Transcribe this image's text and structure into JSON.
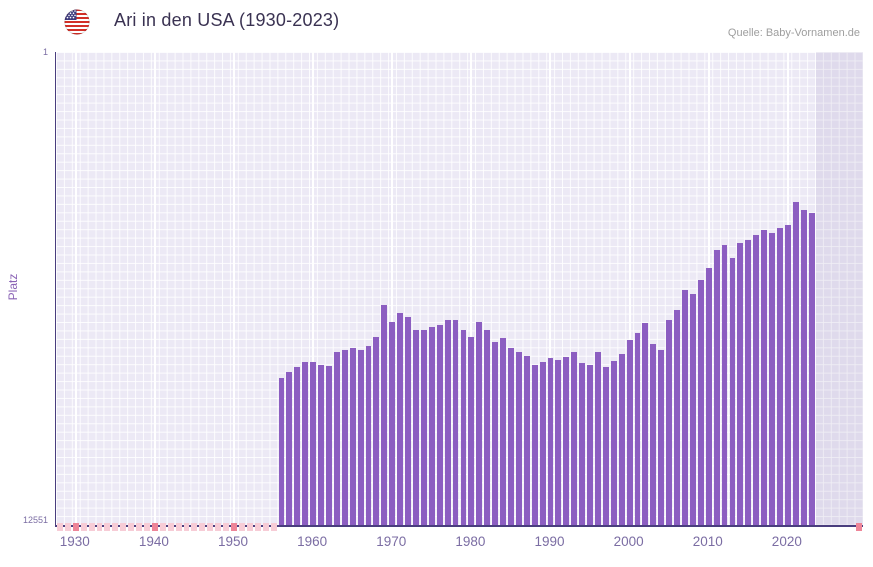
{
  "header": {
    "title": "Ari in den USA (1930-2023)",
    "source": "Quelle: Baby-Vornamen.de"
  },
  "chart_data": {
    "type": "bar",
    "title": "Ari in den USA (1930-2023)",
    "xlabel": "",
    "ylabel": "Platz",
    "y_axis": {
      "top_label": "1",
      "bottom_label": "12551",
      "min": 1,
      "max": 12551,
      "inverted": true,
      "scale": "linear"
    },
    "x_axis": {
      "start_year": 1928,
      "end_year": 2029,
      "tick_years": [
        1930,
        1940,
        1950,
        1960,
        1970,
        1980,
        1990,
        2000,
        2010,
        2020
      ]
    },
    "years": [
      1956,
      1957,
      1958,
      1959,
      1960,
      1961,
      1962,
      1963,
      1964,
      1965,
      1966,
      1967,
      1968,
      1969,
      1970,
      1971,
      1972,
      1973,
      1974,
      1975,
      1976,
      1977,
      1978,
      1979,
      1980,
      1981,
      1982,
      1983,
      1984,
      1985,
      1986,
      1987,
      1988,
      1989,
      1990,
      1991,
      1992,
      1993,
      1994,
      1995,
      1996,
      1997,
      1998,
      1999,
      2000,
      2001,
      2002,
      2003,
      2004,
      2005,
      2006,
      2007,
      2008,
      2009,
      2010,
      2011,
      2012,
      2013,
      2014,
      2015,
      2016,
      2017,
      2018,
      2019,
      2020,
      2021,
      2022,
      2023
    ],
    "ranks": [
      8650,
      8490,
      8360,
      8230,
      8230,
      8310,
      8330,
      7960,
      7910,
      7850,
      7910,
      7800,
      7560,
      6710,
      7160,
      6930,
      7030,
      7380,
      7380,
      7300,
      7240,
      7110,
      7110,
      7380,
      7560,
      7160,
      7380,
      7700,
      7590,
      7850,
      7960,
      8070,
      8310,
      8230,
      8120,
      8170,
      8090,
      7960,
      8250,
      8310,
      7960,
      8360,
      8200,
      8010,
      7640,
      7460,
      7190,
      7750,
      7910,
      7110,
      6850,
      6320,
      6420,
      6050,
      5730,
      5250,
      5120,
      5470,
      5070,
      4990,
      4860,
      4720,
      4800,
      4670,
      4590,
      3980,
      4190,
      4270
    ],
    "no_data_years": [
      1928,
      1929,
      1930,
      1931,
      1932,
      1933,
      1934,
      1935,
      1936,
      1937,
      1938,
      1939,
      1940,
      1941,
      1942,
      1943,
      1944,
      1945,
      1946,
      1947,
      1948,
      1949,
      1950,
      1951,
      1952,
      1953,
      1954,
      1955,
      2029
    ],
    "strong_no_data_years": [
      1930,
      1940,
      1950,
      2029
    ],
    "shaded_region": {
      "from_year": 2024,
      "to_year": 2029
    },
    "legend": [],
    "grid": true,
    "colors": {
      "bar": "#8c5ec1",
      "no_data": "#f7ccd6",
      "no_data_strong": "#ee8598",
      "plot_bg": "#ece9f5",
      "axis": "#4a3e7e",
      "tick_text": "#7b6da3"
    }
  }
}
